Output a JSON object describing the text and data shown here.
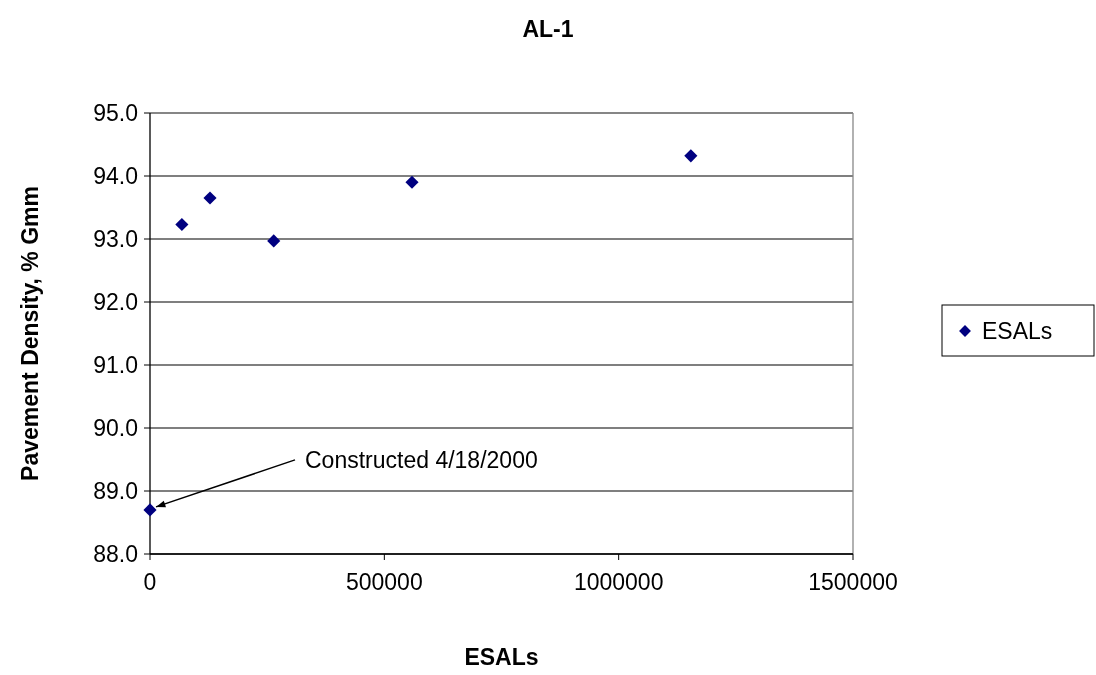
{
  "chart_data": {
    "type": "scatter",
    "title": "AL-1",
    "xlabel": "ESALs",
    "ylabel": "Pavement Density, % Gmm",
    "x": [
      0,
      68000,
      128000,
      264000,
      559000,
      1154000
    ],
    "series": [
      {
        "name": "ESALs",
        "color": "#000080",
        "values": [
          88.7,
          93.23,
          93.65,
          92.97,
          93.9,
          94.32
        ]
      }
    ],
    "xlim": [
      0,
      1500000
    ],
    "xticks": [
      0,
      500000,
      1000000,
      1500000
    ],
    "ylim": [
      88,
      95
    ],
    "yticks": [
      {
        "value": 88,
        "label": "88.0"
      },
      {
        "value": 89,
        "label": "89.0"
      },
      {
        "value": 90,
        "label": "90.0"
      },
      {
        "value": 91,
        "label": "91.0"
      },
      {
        "value": 92,
        "label": "92.0"
      },
      {
        "value": 93,
        "label": "93.0"
      },
      {
        "value": 94,
        "label": "94.0"
      },
      {
        "value": 95,
        "label": "95.0"
      }
    ],
    "grid": "y",
    "legend": "right",
    "marker": "diamond",
    "annotations": [
      {
        "text": "Constructed 4/18/2000",
        "x": 0,
        "y": 88.7
      }
    ]
  }
}
